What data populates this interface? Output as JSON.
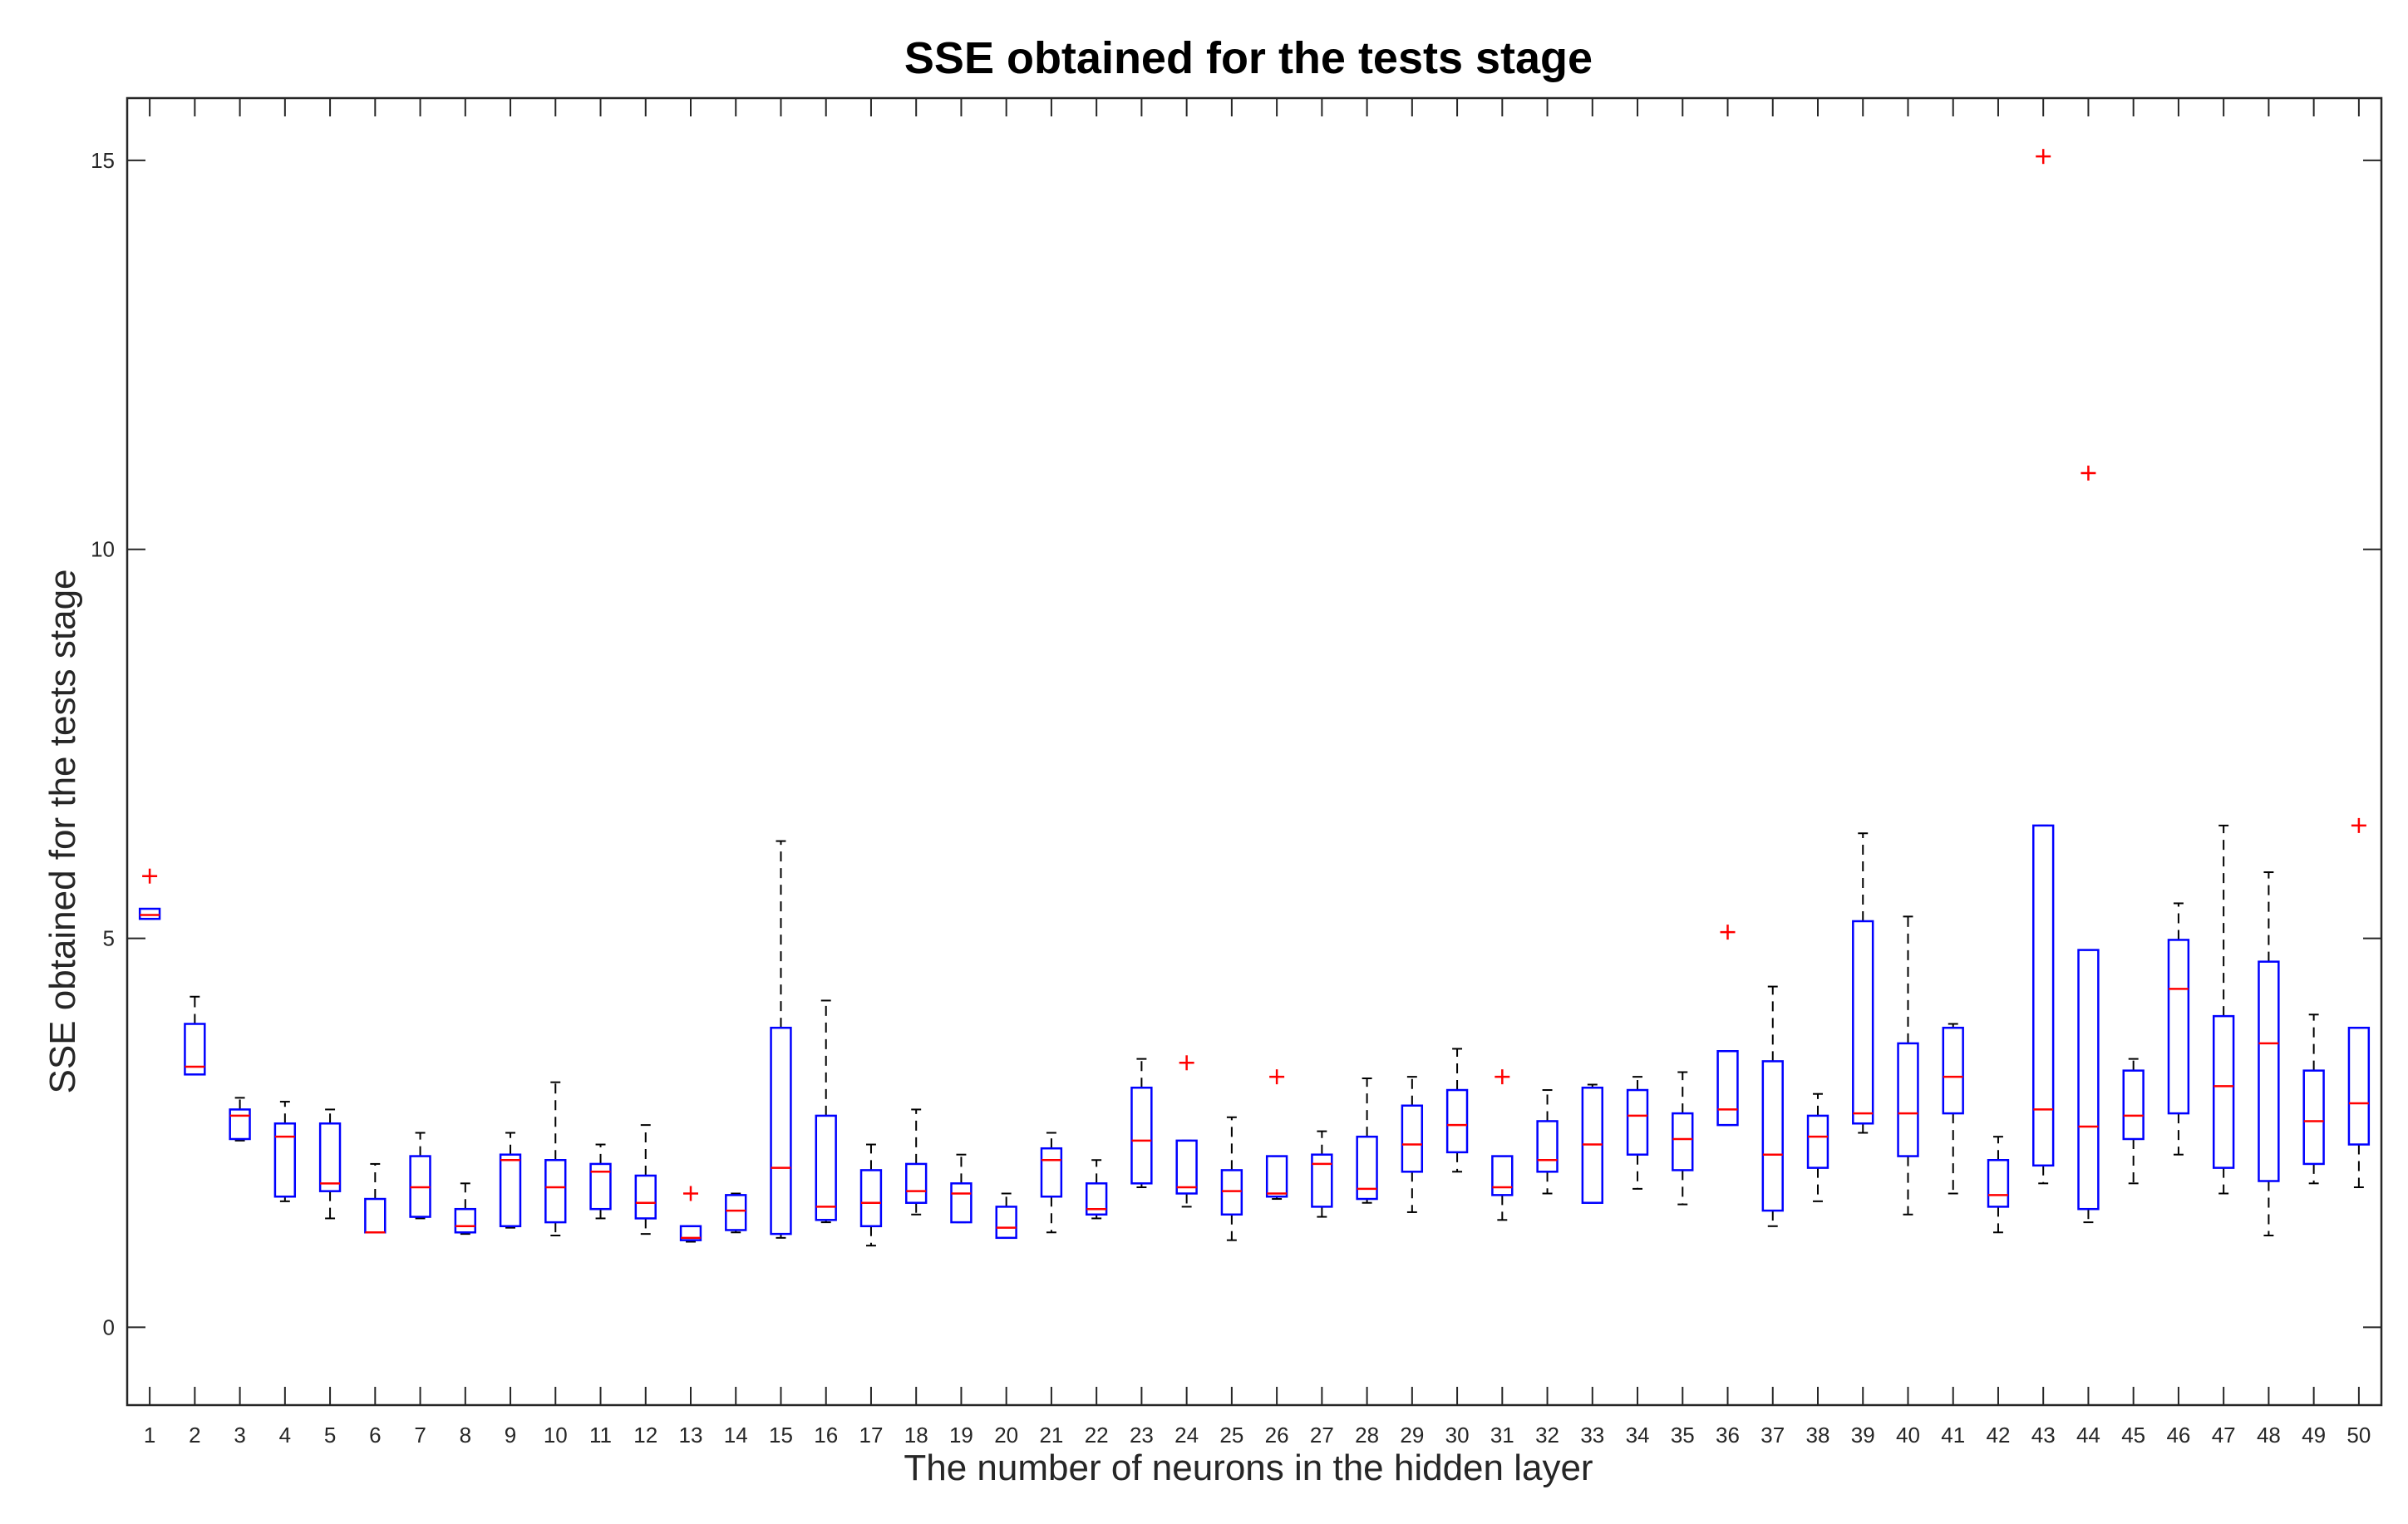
{
  "chart_data": {
    "type": "box",
    "title": "SSE obtained for the tests stage",
    "xlabel": "The number of neurons in the hidden layer",
    "ylabel": "SSE obtained for the tests stage",
    "xlim": [
      0.5,
      50.5
    ],
    "ylim": [
      -1,
      15.8
    ],
    "yticks": [
      0,
      5,
      10,
      15
    ],
    "categories": [
      "1",
      "2",
      "3",
      "4",
      "5",
      "6",
      "7",
      "8",
      "9",
      "10",
      "11",
      "12",
      "13",
      "14",
      "15",
      "16",
      "17",
      "18",
      "19",
      "20",
      "21",
      "22",
      "23",
      "24",
      "25",
      "26",
      "27",
      "28",
      "29",
      "30",
      "31",
      "32",
      "33",
      "34",
      "35",
      "36",
      "37",
      "38",
      "39",
      "40",
      "41",
      "42",
      "43",
      "44",
      "45",
      "46",
      "47",
      "48",
      "49",
      "50"
    ],
    "box_color": "#0000ff",
    "median_color": "#ff0000",
    "whisker_color": "#000000",
    "outlier_color": "#ff0000",
    "boxes": [
      {
        "x": 1,
        "lw": 5.25,
        "q1": 5.25,
        "med": 5.3,
        "q3": 5.38,
        "uw": 5.38,
        "outliers": [
          5.8
        ]
      },
      {
        "x": 2,
        "lw": 3.25,
        "q1": 3.25,
        "med": 3.35,
        "q3": 3.9,
        "uw": 4.25,
        "outliers": []
      },
      {
        "x": 3,
        "lw": 2.4,
        "q1": 2.42,
        "med": 2.72,
        "q3": 2.8,
        "uw": 2.95,
        "outliers": []
      },
      {
        "x": 4,
        "lw": 1.62,
        "q1": 1.68,
        "med": 2.45,
        "q3": 2.62,
        "uw": 2.9,
        "outliers": []
      },
      {
        "x": 5,
        "lw": 1.4,
        "q1": 1.75,
        "med": 1.85,
        "q3": 2.62,
        "uw": 2.8,
        "outliers": []
      },
      {
        "x": 6,
        "lw": 1.22,
        "q1": 1.22,
        "med": 1.22,
        "q3": 1.65,
        "uw": 2.1,
        "outliers": []
      },
      {
        "x": 7,
        "lw": 1.4,
        "q1": 1.42,
        "med": 1.8,
        "q3": 2.2,
        "uw": 2.5,
        "outliers": []
      },
      {
        "x": 8,
        "lw": 1.2,
        "q1": 1.22,
        "med": 1.3,
        "q3": 1.52,
        "uw": 1.85,
        "outliers": []
      },
      {
        "x": 9,
        "lw": 1.28,
        "q1": 1.3,
        "med": 2.15,
        "q3": 2.22,
        "uw": 2.5,
        "outliers": []
      },
      {
        "x": 10,
        "lw": 1.18,
        "q1": 1.35,
        "med": 1.8,
        "q3": 2.15,
        "uw": 3.15,
        "outliers": []
      },
      {
        "x": 11,
        "lw": 1.4,
        "q1": 1.52,
        "med": 2.0,
        "q3": 2.1,
        "uw": 2.35,
        "outliers": []
      },
      {
        "x": 12,
        "lw": 1.2,
        "q1": 1.4,
        "med": 1.6,
        "q3": 1.95,
        "uw": 2.6,
        "outliers": []
      },
      {
        "x": 13,
        "lw": 1.1,
        "q1": 1.12,
        "med": 1.15,
        "q3": 1.3,
        "uw": 1.3,
        "outliers": [
          1.72
        ]
      },
      {
        "x": 14,
        "lw": 1.22,
        "q1": 1.25,
        "med": 1.5,
        "q3": 1.7,
        "uw": 1.72,
        "outliers": []
      },
      {
        "x": 15,
        "lw": 1.15,
        "q1": 1.2,
        "med": 2.05,
        "q3": 3.85,
        "uw": 6.25,
        "outliers": []
      },
      {
        "x": 16,
        "lw": 1.35,
        "q1": 1.38,
        "med": 1.55,
        "q3": 2.72,
        "uw": 4.2,
        "outliers": []
      },
      {
        "x": 17,
        "lw": 1.05,
        "q1": 1.3,
        "med": 1.6,
        "q3": 2.02,
        "uw": 2.35,
        "outliers": []
      },
      {
        "x": 18,
        "lw": 1.45,
        "q1": 1.6,
        "med": 1.75,
        "q3": 2.1,
        "uw": 2.8,
        "outliers": []
      },
      {
        "x": 19,
        "lw": 1.35,
        "q1": 1.35,
        "med": 1.72,
        "q3": 1.85,
        "uw": 2.22,
        "outliers": []
      },
      {
        "x": 20,
        "lw": 1.15,
        "q1": 1.15,
        "med": 1.28,
        "q3": 1.55,
        "uw": 1.72,
        "outliers": []
      },
      {
        "x": 21,
        "lw": 1.22,
        "q1": 1.68,
        "med": 2.15,
        "q3": 2.3,
        "uw": 2.5,
        "outliers": []
      },
      {
        "x": 22,
        "lw": 1.4,
        "q1": 1.45,
        "med": 1.52,
        "q3": 1.85,
        "uw": 2.15,
        "outliers": []
      },
      {
        "x": 23,
        "lw": 1.8,
        "q1": 1.85,
        "med": 2.4,
        "q3": 3.08,
        "uw": 3.45,
        "outliers": []
      },
      {
        "x": 24,
        "lw": 1.55,
        "q1": 1.72,
        "med": 1.8,
        "q3": 2.4,
        "uw": 2.4,
        "outliers": [
          3.4
        ]
      },
      {
        "x": 25,
        "lw": 1.12,
        "q1": 1.45,
        "med": 1.75,
        "q3": 2.02,
        "uw": 2.7,
        "outliers": []
      },
      {
        "x": 26,
        "lw": 1.65,
        "q1": 1.68,
        "med": 1.72,
        "q3": 2.2,
        "uw": 2.2,
        "outliers": [
          3.22
        ]
      },
      {
        "x": 27,
        "lw": 1.42,
        "q1": 1.55,
        "med": 2.1,
        "q3": 2.22,
        "uw": 2.52,
        "outliers": []
      },
      {
        "x": 28,
        "lw": 1.6,
        "q1": 1.65,
        "med": 1.78,
        "q3": 2.45,
        "uw": 3.2,
        "outliers": []
      },
      {
        "x": 29,
        "lw": 1.48,
        "q1": 2.0,
        "med": 2.35,
        "q3": 2.85,
        "uw": 3.22,
        "outliers": []
      },
      {
        "x": 30,
        "lw": 2.0,
        "q1": 2.25,
        "med": 2.6,
        "q3": 3.05,
        "uw": 3.58,
        "outliers": []
      },
      {
        "x": 31,
        "lw": 1.38,
        "q1": 1.7,
        "med": 1.8,
        "q3": 2.2,
        "uw": 2.2,
        "outliers": [
          3.22
        ]
      },
      {
        "x": 32,
        "lw": 1.72,
        "q1": 2.0,
        "med": 2.15,
        "q3": 2.65,
        "uw": 3.05,
        "outliers": []
      },
      {
        "x": 33,
        "lw": 1.6,
        "q1": 1.6,
        "med": 2.35,
        "q3": 3.08,
        "uw": 3.12,
        "outliers": []
      },
      {
        "x": 34,
        "lw": 1.78,
        "q1": 2.22,
        "med": 2.72,
        "q3": 3.05,
        "uw": 3.22,
        "outliers": []
      },
      {
        "x": 35,
        "lw": 1.58,
        "q1": 2.02,
        "med": 2.42,
        "q3": 2.75,
        "uw": 3.28,
        "outliers": []
      },
      {
        "x": 36,
        "lw": 2.6,
        "q1": 2.6,
        "med": 2.8,
        "q3": 3.55,
        "uw": 3.55,
        "outliers": [
          5.08
        ]
      },
      {
        "x": 37,
        "lw": 1.3,
        "q1": 1.5,
        "med": 2.22,
        "q3": 3.42,
        "uw": 4.38,
        "outliers": []
      },
      {
        "x": 38,
        "lw": 1.62,
        "q1": 2.05,
        "med": 2.45,
        "q3": 2.72,
        "uw": 3.0,
        "outliers": []
      },
      {
        "x": 39,
        "lw": 2.5,
        "q1": 2.62,
        "med": 2.75,
        "q3": 5.22,
        "uw": 6.35,
        "outliers": []
      },
      {
        "x": 40,
        "lw": 1.45,
        "q1": 2.2,
        "med": 2.75,
        "q3": 3.65,
        "uw": 5.28,
        "outliers": []
      },
      {
        "x": 41,
        "lw": 1.72,
        "q1": 2.75,
        "med": 3.22,
        "q3": 3.85,
        "uw": 3.9,
        "outliers": []
      },
      {
        "x": 42,
        "lw": 1.22,
        "q1": 1.55,
        "med": 1.7,
        "q3": 2.15,
        "uw": 2.45,
        "outliers": []
      },
      {
        "x": 43,
        "lw": 1.85,
        "q1": 2.08,
        "med": 2.8,
        "q3": 6.45,
        "uw": 6.45,
        "outliers": [
          15.05
        ]
      },
      {
        "x": 44,
        "lw": 1.35,
        "q1": 1.52,
        "med": 2.58,
        "q3": 4.85,
        "uw": 4.85,
        "outliers": [
          10.98
        ]
      },
      {
        "x": 45,
        "lw": 1.85,
        "q1": 2.42,
        "med": 2.72,
        "q3": 3.3,
        "uw": 3.45,
        "outliers": []
      },
      {
        "x": 46,
        "lw": 2.22,
        "q1": 2.75,
        "med": 4.35,
        "q3": 4.98,
        "uw": 5.45,
        "outliers": []
      },
      {
        "x": 47,
        "lw": 1.72,
        "q1": 2.05,
        "med": 3.1,
        "q3": 4.0,
        "uw": 6.45,
        "outliers": []
      },
      {
        "x": 48,
        "lw": 1.18,
        "q1": 1.88,
        "med": 3.65,
        "q3": 4.7,
        "uw": 5.85,
        "outliers": []
      },
      {
        "x": 49,
        "lw": 1.85,
        "q1": 2.1,
        "med": 2.65,
        "q3": 3.3,
        "uw": 4.02,
        "outliers": []
      },
      {
        "x": 50,
        "lw": 1.8,
        "q1": 2.35,
        "med": 2.88,
        "q3": 3.85,
        "uw": 3.85,
        "outliers": [
          6.45
        ]
      }
    ]
  }
}
